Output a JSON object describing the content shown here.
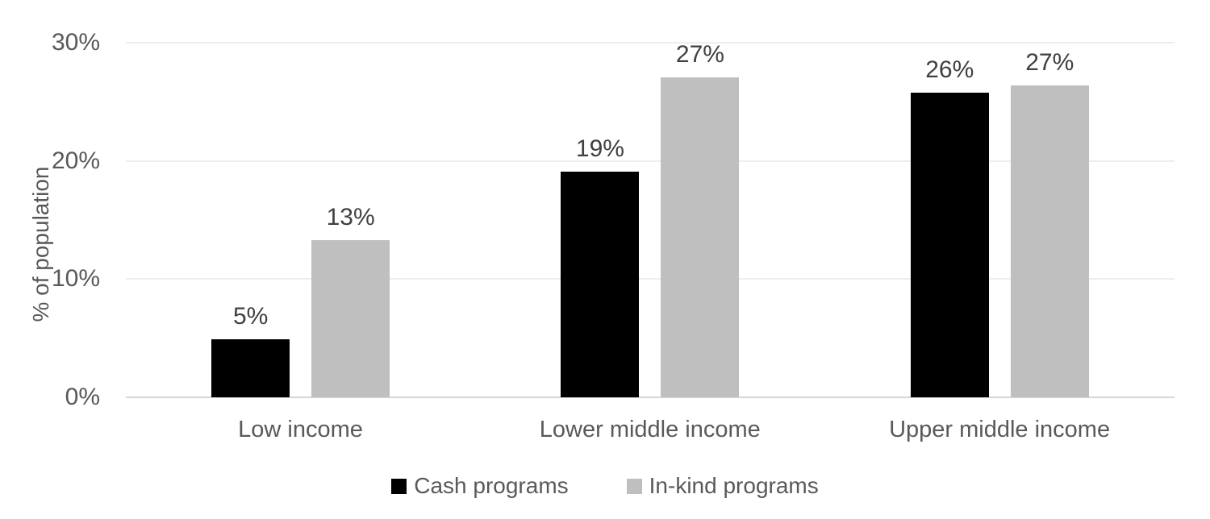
{
  "chart_data": {
    "type": "bar",
    "title": "",
    "xlabel": "",
    "ylabel": "% of population",
    "categories": [
      "Low income",
      "Lower middle income",
      "Upper middle income"
    ],
    "series": [
      {
        "name": "Cash programs",
        "color": "#000000",
        "values": [
          5,
          19,
          26
        ],
        "labels": [
          "5%",
          "19%",
          "26%"
        ],
        "bar_heights_pct": [
          4.9,
          19.1,
          25.8
        ]
      },
      {
        "name": "In-kind programs",
        "color": "#bfbfbf",
        "values": [
          13,
          27,
          27
        ],
        "labels": [
          "13%",
          "27%",
          "27%"
        ],
        "bar_heights_pct": [
          13.3,
          27.1,
          26.4
        ]
      }
    ],
    "y_ticks": [
      "0%",
      "10%",
      "20%",
      "30%"
    ],
    "y_tick_values": [
      0,
      10,
      20,
      30
    ],
    "ylim": [
      0,
      30
    ],
    "grid": "horizontal",
    "legend_position": "bottom"
  },
  "colors": {
    "background": "#ffffff",
    "gridline": "#ededed",
    "axis_line": "#d6d6d6",
    "axis_text": "#595959",
    "data_label_text": "#404040"
  }
}
